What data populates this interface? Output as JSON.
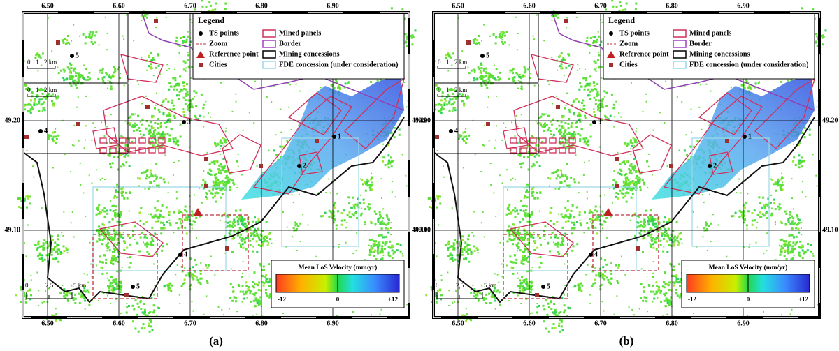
{
  "figure": {
    "panels": [
      {
        "caption": "(a)"
      },
      {
        "caption": "(b)"
      }
    ],
    "map": {
      "lon_ticks": [
        "6.50",
        "6.60",
        "6.70",
        "6.80",
        "6.90"
      ],
      "lat_ticks": [
        "49.20",
        "49.10"
      ],
      "legend": {
        "title": "Legend",
        "items": [
          "TS points",
          "Zoom",
          "Reference point",
          "Cities",
          "Mined panels",
          "Border",
          "Mining concessions",
          "FDE concession (under consideration)"
        ]
      },
      "colorbar": {
        "title": "Mean LoS Velocity (mm/yr)",
        "labels": [
          "-12",
          "0",
          "+12"
        ]
      },
      "point_labels": [
        "1",
        "2",
        "3",
        "4",
        "5"
      ],
      "inset_point_labels": [
        "5",
        "4"
      ],
      "scale_bar": [
        "0",
        "2,5",
        "5 km"
      ],
      "inset_scale_bar": [
        "0",
        "1",
        "2 km"
      ]
    }
  }
}
